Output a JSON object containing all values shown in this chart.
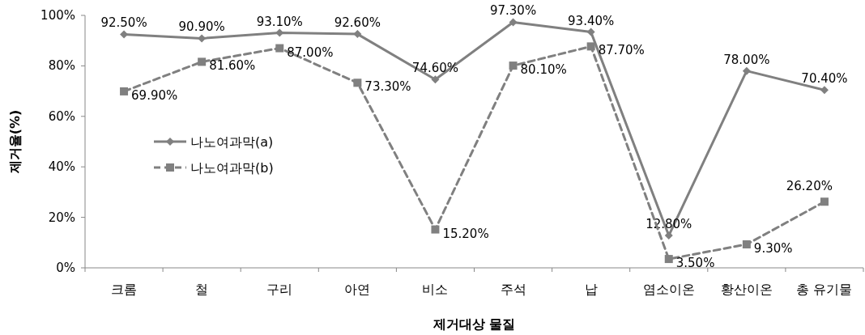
{
  "chart_data": {
    "type": "line",
    "xlabel": "제거대상 물질",
    "ylabel": "제거율(%)",
    "categories": [
      "크롬",
      "철",
      "구리",
      "아연",
      "비소",
      "주석",
      "납",
      "염소이온",
      "황산이온",
      "총 유기물"
    ],
    "series": [
      {
        "name": "나노여과막(a)",
        "color": "#808080",
        "marker": "diamond",
        "line_style": "solid",
        "values": [
          92.5,
          90.9,
          93.1,
          92.6,
          74.6,
          97.3,
          93.4,
          12.8,
          78.0,
          70.4
        ],
        "value_labels": [
          "92.50%",
          "90.90%",
          "93.10%",
          "92.60%",
          "74.60%",
          "97.30%",
          "93.40%",
          "12.80%",
          "78.00%",
          "70.40%"
        ]
      },
      {
        "name": "나노여과막(b)",
        "color": "#808080",
        "marker": "square",
        "line_style": "dashed",
        "values": [
          69.9,
          81.6,
          87.0,
          73.3,
          15.2,
          80.1,
          87.7,
          3.5,
          9.3,
          26.2
        ],
        "value_labels": [
          "69.90%",
          "81.60%",
          "87.00%",
          "73.30%",
          "15.20%",
          "80.10%",
          "87.70%",
          "3.50%",
          "9.30%",
          "26.20%"
        ]
      }
    ],
    "ylim": [
      0,
      100
    ],
    "yticks": [
      {
        "value": 0,
        "label": "0%"
      },
      {
        "value": 20,
        "label": "20%"
      },
      {
        "value": 40,
        "label": "40%"
      },
      {
        "value": 60,
        "label": "60%"
      },
      {
        "value": 80,
        "label": "80%"
      },
      {
        "value": 100,
        "label": "100%"
      }
    ],
    "legend": "left"
  }
}
